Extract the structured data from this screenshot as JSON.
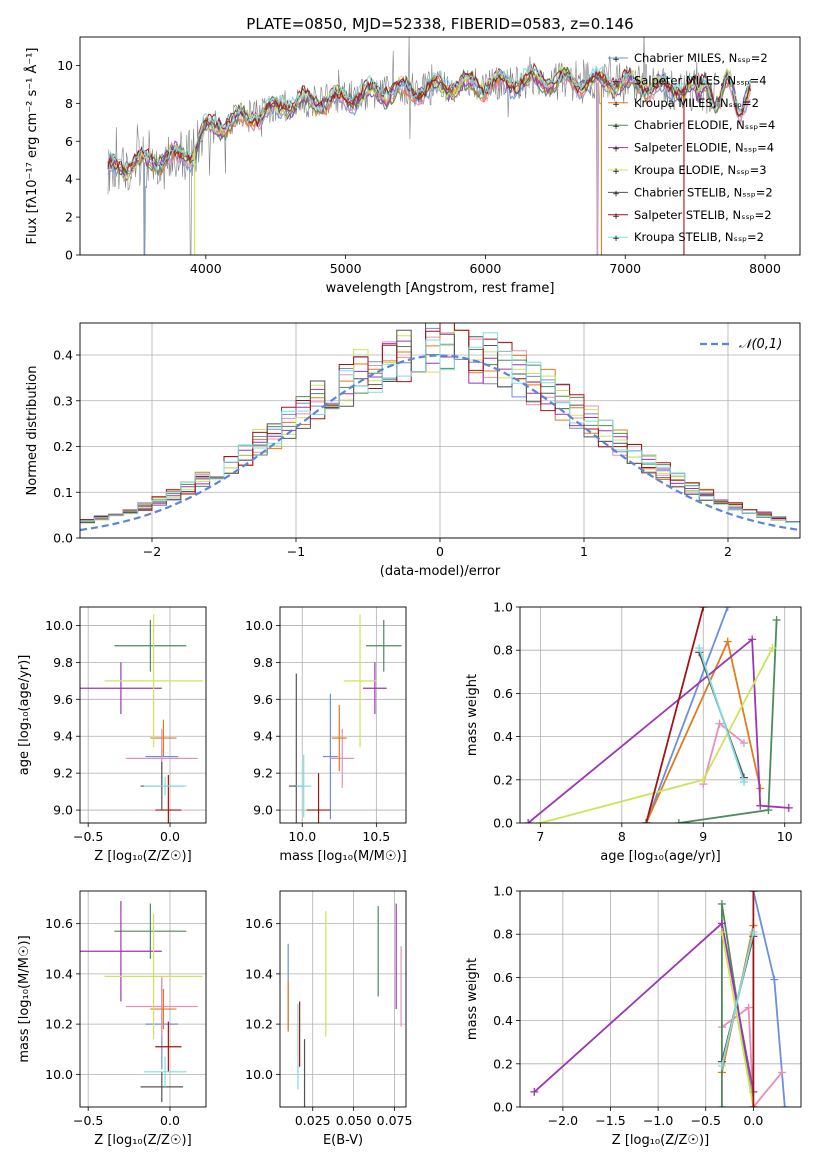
{
  "figure": {
    "title": "PLATE=0850, MJD=52338, FIBERID=0583, z=0.146"
  },
  "series_colors": [
    "#6b8fdc",
    "#e88fb8",
    "#e07b1e",
    "#4f8a5e",
    "#9b36b4",
    "#cfe35a",
    "#555555",
    "#a21515",
    "#7fdde0"
  ],
  "chart_data": [
    {
      "id": "spectrum",
      "type": "line",
      "title": "PLATE=0850, MJD=52338, FIBERID=0583, z=0.146",
      "xlabel": "wavelength [Angstrom, rest frame]",
      "ylabel": "Flux [fλ10⁻¹⁷ erg cm⁻² s⁻¹ Å⁻¹]",
      "xlim": [
        3100,
        8250
      ],
      "ylim": [
        0,
        11.5
      ],
      "xticks": [
        "4000",
        "5000",
        "6000",
        "7000",
        "8000"
      ],
      "yticks": [
        "0",
        "2",
        "4",
        "6",
        "8",
        "10"
      ],
      "legend": "upper-right",
      "series": [
        {
          "name": "Chabrier MILES, N_SSP=2"
        },
        {
          "name": "Salpeter MILES, N_SSP=4"
        },
        {
          "name": "Kroupa MILES, N_SSP=2"
        },
        {
          "name": "Chabrier ELODIE, N_SSP=4"
        },
        {
          "name": "Salpeter ELODIE, N_SSP=4"
        },
        {
          "name": "Kroupa ELODIE, N_SSP=3"
        },
        {
          "name": "Chabrier STELIB, N_SSP=2"
        },
        {
          "name": "Salpeter STELIB, N_SSP=2"
        },
        {
          "name": "Kroupa STELIB, N_SSP=2"
        }
      ],
      "continuum": {
        "x": [
          3300,
          3500,
          3700,
          3900,
          4000,
          4200,
          4400,
          4600,
          4800,
          5000,
          5200,
          5400,
          5600,
          5800,
          6000,
          6200,
          6400,
          6600,
          6800,
          7000,
          7200,
          7400,
          7600,
          7800,
          7900
        ],
        "y": [
          4.6,
          4.8,
          5.1,
          5.4,
          6.6,
          7.0,
          7.5,
          7.9,
          8.1,
          8.3,
          8.5,
          8.7,
          8.8,
          8.9,
          9.0,
          9.1,
          9.2,
          9.2,
          9.1,
          9.0,
          8.9,
          8.8,
          8.6,
          8.4,
          8.3
        ]
      },
      "observed_range": [
        3300,
        7650
      ],
      "model_range": [
        3300,
        7900
      ]
    },
    {
      "id": "residuals",
      "type": "histogram",
      "xlabel": "(data-model)/error",
      "ylabel": "Normed distribution",
      "xlim": [
        -2.5,
        2.5
      ],
      "ylim": [
        0,
        0.47
      ],
      "xticks": [
        "−2",
        "−1",
        "0",
        "1",
        "2"
      ],
      "yticks": [
        "0.0",
        "0.1",
        "0.2",
        "0.3",
        "0.4"
      ],
      "bin_width": 0.1,
      "reference_label": "𝒩(0,1)",
      "legend": "upper-right"
    },
    {
      "id": "age-vs-Z",
      "type": "errorbar",
      "xlabel": "Z [log₁₀(Z/Z☉)]",
      "ylabel": "age  [log₁₀(age/yr)]",
      "xlim": [
        -0.55,
        0.22
      ],
      "ylim": [
        8.93,
        10.1
      ],
      "xticks": [
        "−0.5",
        "0.0"
      ],
      "yticks": [
        "9.0",
        "9.2",
        "9.4",
        "9.6",
        "9.8",
        "10.0"
      ],
      "points": [
        {
          "x": -0.05,
          "xerr": 0.1,
          "y": 9.29,
          "yerr": 0.04
        },
        {
          "x": -0.05,
          "xerr": 0.22,
          "y": 9.28,
          "yerr": 0.16
        },
        {
          "x": -0.04,
          "xerr": 0.08,
          "y": 9.39,
          "yerr": 0.1
        },
        {
          "x": -0.12,
          "xerr": 0.22,
          "y": 9.89,
          "yerr": 0.14
        },
        {
          "x": -0.3,
          "xerr": 0.25,
          "y": 9.66,
          "yerr": 0.14
        },
        {
          "x": -0.1,
          "xerr": 0.3,
          "y": 9.7,
          "yerr": 0.36
        },
        {
          "x": -0.05,
          "xerr": 0.13,
          "y": 9.13,
          "yerr": 0.13
        },
        {
          "x": -0.01,
          "xerr": 0.08,
          "y": 9.0,
          "yerr": 0.19
        },
        {
          "x": -0.03,
          "xerr": 0.13,
          "y": 9.13,
          "yerr": 0.05
        }
      ]
    },
    {
      "id": "age-vs-mass",
      "type": "errorbar",
      "xlabel": "mass [log₁₀(M/M☉)]",
      "ylabel": "",
      "xlim": [
        9.85,
        10.7
      ],
      "ylim": [
        8.93,
        10.1
      ],
      "xticks": [
        "10.0",
        "10.5"
      ],
      "yticks": [
        "9.0",
        "9.2",
        "9.4",
        "9.6",
        "9.8",
        "10.0"
      ],
      "points": [
        {
          "x": 10.19,
          "xerr": 0.05,
          "y": 9.29,
          "yerr": 0.34
        },
        {
          "x": 10.27,
          "xerr": 0.08,
          "y": 9.28,
          "yerr": 0.16
        },
        {
          "x": 10.25,
          "xerr": 0.05,
          "y": 9.39,
          "yerr": 0.18
        },
        {
          "x": 10.55,
          "xerr": 0.12,
          "y": 9.89,
          "yerr": 0.14
        },
        {
          "x": 10.49,
          "xerr": 0.08,
          "y": 9.66,
          "yerr": 0.14
        },
        {
          "x": 10.39,
          "xerr": 0.11,
          "y": 9.7,
          "yerr": 0.36
        },
        {
          "x": 9.96,
          "xerr": 0.05,
          "y": 9.13,
          "yerr": 0.61
        },
        {
          "x": 10.11,
          "xerr": 0.08,
          "y": 9.0,
          "yerr": 0.2
        },
        {
          "x": 10.01,
          "xerr": 0.05,
          "y": 9.13,
          "yerr": 0.17
        }
      ]
    },
    {
      "id": "weight-vs-age",
      "type": "line",
      "xlabel": "age  [log₁₀(age/yr)]",
      "ylabel": "mass weight",
      "xlim": [
        6.75,
        10.2
      ],
      "ylim": [
        0,
        1.0
      ],
      "xticks": [
        "7",
        "8",
        "9",
        "10"
      ],
      "yticks": [
        "0.0",
        "0.2",
        "0.4",
        "0.6",
        "0.8",
        "1.0"
      ],
      "series": [
        {
          "x": [
            8.3,
            9.3
          ],
          "y": [
            0.0,
            1.0
          ]
        },
        {
          "x": [
            9.0,
            9.2,
            9.5
          ],
          "y": [
            0.18,
            0.46,
            0.37
          ]
        },
        {
          "x": [
            8.3,
            9.3,
            9.7
          ],
          "y": [
            0.0,
            0.84,
            0.16
          ]
        },
        {
          "x": [
            8.7,
            9.8,
            9.9
          ],
          "y": [
            0.0,
            0.06,
            0.94
          ]
        },
        {
          "x": [
            6.85,
            9.6,
            9.7,
            10.05
          ],
          "y": [
            0.0,
            0.85,
            0.08,
            0.07
          ]
        },
        {
          "x": [
            7.0,
            9.0,
            9.85
          ],
          "y": [
            0.0,
            0.2,
            0.81
          ]
        },
        {
          "x": [
            8.95,
            9.5
          ],
          "y": [
            0.79,
            0.21
          ]
        },
        {
          "x": [
            8.3,
            9.0
          ],
          "y": [
            0.0,
            1.0
          ]
        },
        {
          "x": [
            8.95,
            9.5
          ],
          "y": [
            0.81,
            0.19
          ]
        }
      ]
    },
    {
      "id": "mass-vs-Z",
      "type": "errorbar",
      "xlabel": "Z [log₁₀(Z/Z☉)]",
      "ylabel": "mass [log₁₀(M/M☉)]",
      "xlim": [
        -0.55,
        0.22
      ],
      "ylim": [
        9.87,
        10.73
      ],
      "xticks": [
        "−0.5",
        "0.0"
      ],
      "yticks": [
        "10.0",
        "10.2",
        "10.4",
        "10.6"
      ],
      "points": [
        {
          "x": -0.05,
          "xerr": 0.1,
          "y": 10.2,
          "yerr": 0.18
        },
        {
          "x": -0.05,
          "xerr": 0.22,
          "y": 10.27,
          "yerr": 0.12
        },
        {
          "x": -0.04,
          "xerr": 0.08,
          "y": 10.26,
          "yerr": 0.08
        },
        {
          "x": -0.12,
          "xerr": 0.22,
          "y": 10.57,
          "yerr": 0.11
        },
        {
          "x": -0.3,
          "xerr": 0.25,
          "y": 10.49,
          "yerr": 0.2
        },
        {
          "x": -0.1,
          "xerr": 0.3,
          "y": 10.39,
          "yerr": 0.25
        },
        {
          "x": -0.05,
          "xerr": 0.13,
          "y": 9.95,
          "yerr": 0.06
        },
        {
          "x": -0.01,
          "xerr": 0.08,
          "y": 10.11,
          "yerr": 0.1
        },
        {
          "x": -0.03,
          "xerr": 0.13,
          "y": 10.01,
          "yerr": 0.06
        }
      ]
    },
    {
      "id": "mass-vs-EBV",
      "type": "errorbar",
      "xlabel": "E(B-V)",
      "ylabel": "",
      "xlim": [
        0.005,
        0.082
      ],
      "ylim": [
        9.87,
        10.73
      ],
      "xticks": [
        "0.025",
        "0.050",
        "0.075"
      ],
      "yticks": [
        "10.0",
        "10.2",
        "10.4",
        "10.6"
      ],
      "points": [
        {
          "x": 0.01,
          "y": 10.35,
          "yerr": 0.17
        },
        {
          "x": 0.079,
          "y": 10.35,
          "yerr": 0.16
        },
        {
          "x": 0.01,
          "y": 10.27,
          "yerr": 0.1
        },
        {
          "x": 0.065,
          "y": 10.49,
          "yerr": 0.18
        },
        {
          "x": 0.076,
          "y": 10.47,
          "yerr": 0.21
        },
        {
          "x": 0.033,
          "y": 10.4,
          "yerr": 0.25
        },
        {
          "x": 0.02,
          "y": 10.0,
          "yerr": 0.14
        },
        {
          "x": 0.017,
          "y": 10.16,
          "yerr": 0.13
        },
        {
          "x": 0.016,
          "y": 10.11,
          "yerr": 0.17
        }
      ]
    },
    {
      "id": "weight-vs-Z",
      "type": "line",
      "xlabel": "Z [log₁₀(Z/Z☉)]",
      "ylabel": "mass weight",
      "xlim": [
        -2.45,
        0.5
      ],
      "ylim": [
        0,
        1.0
      ],
      "xticks": [
        "−2.0",
        "−1.5",
        "−1.0",
        "−0.5",
        "0.0"
      ],
      "yticks": [
        "0.0",
        "0.2",
        "0.4",
        "0.6",
        "0.8",
        "1.0"
      ],
      "series": [
        {
          "x": [
            0.0,
            0.22,
            0.33
          ],
          "y": [
            1.0,
            0.59,
            0.0
          ]
        },
        {
          "x": [
            -0.33,
            -0.05,
            0.0,
            0.3
          ],
          "y": [
            0.37,
            0.46,
            0.0,
            0.16
          ]
        },
        {
          "x": [
            -0.33,
            0.0
          ],
          "y": [
            0.16,
            0.84
          ]
        },
        {
          "x": [
            -0.33,
            -0.33,
            0.0
          ],
          "y": [
            0.0,
            0.94,
            0.0
          ]
        },
        {
          "x": [
            -2.3,
            -0.33,
            0.0
          ],
          "y": [
            0.07,
            0.85,
            0.07
          ]
        },
        {
          "x": [
            -0.33,
            0.0
          ],
          "y": [
            0.81,
            0.0
          ]
        },
        {
          "x": [
            -0.33,
            0.0
          ],
          "y": [
            0.21,
            0.79
          ]
        },
        {
          "x": [
            0.0,
            0.0
          ],
          "y": [
            0.0,
            1.0
          ]
        },
        {
          "x": [
            -0.33,
            0.0
          ],
          "y": [
            0.19,
            0.81
          ]
        }
      ]
    }
  ]
}
